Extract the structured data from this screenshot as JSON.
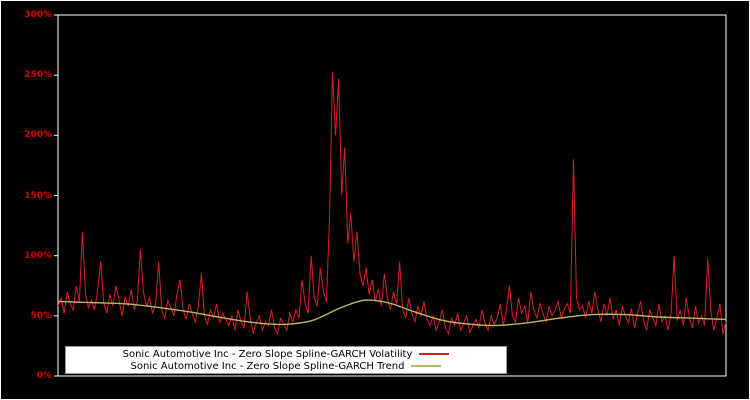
{
  "figure": {
    "background": "#000000",
    "frame_color": "#ffffff"
  },
  "axis": {
    "tick_labels": [
      "0%",
      "50%",
      "100%",
      "150%",
      "200%",
      "250%",
      "300%"
    ],
    "tick_values": [
      0,
      50,
      100,
      150,
      200,
      250,
      300
    ],
    "label_color": "#d40000"
  },
  "legend": {
    "items": [
      {
        "label": "Sonic Automotive Inc - Zero Slope Spline-GARCH Volatility",
        "color": "#d62020"
      },
      {
        "label": "Sonic Automotive Inc - Zero Slope Spline-GARCH Trend",
        "color": "#bdb76b"
      }
    ]
  },
  "chart_data": {
    "type": "line",
    "title": "",
    "xlabel": "",
    "ylabel": "",
    "ylim": [
      0,
      300
    ],
    "y_tick_interval": 50,
    "grid": false,
    "legend_position": "bottom-center",
    "series": [
      {
        "name": "Sonic Automotive Inc - Zero Slope Spline-GARCH Volatility",
        "color": "#d62020",
        "style": "jagged",
        "unit": "percent",
        "values": [
          58,
          65,
          52,
          70,
          60,
          55,
          75,
          62,
          120,
          68,
          57,
          63,
          55,
          72,
          95,
          60,
          52,
          68,
          58,
          75,
          63,
          50,
          66,
          58,
          72,
          55,
          62,
          105,
          70,
          58,
          65,
          52,
          60,
          95,
          55,
          48,
          63,
          57,
          50,
          68,
          80,
          55,
          47,
          60,
          52,
          45,
          58,
          85,
          50,
          43,
          55,
          48,
          60,
          44,
          52,
          47,
          42,
          50,
          38,
          55,
          45,
          40,
          70,
          48,
          36,
          44,
          50,
          38,
          45,
          42,
          55,
          40,
          35,
          48,
          43,
          38,
          52,
          45,
          55,
          48,
          80,
          60,
          52,
          100,
          65,
          58,
          90,
          70,
          62,
          130,
          253,
          200,
          247,
          150,
          190,
          110,
          135,
          95,
          120,
          85,
          75,
          90,
          68,
          80,
          62,
          72,
          58,
          85,
          65,
          55,
          70,
          60,
          95,
          55,
          48,
          65,
          52,
          45,
          58,
          50,
          62,
          47,
          42,
          50,
          38,
          45,
          55,
          40,
          35,
          48,
          42,
          52,
          38,
          44,
          50,
          36,
          42,
          47,
          40,
          55,
          44,
          38,
          50,
          43,
          48,
          60,
          42,
          55,
          75,
          50,
          45,
          65,
          52,
          58,
          44,
          70,
          55,
          48,
          60,
          52,
          45,
          58,
          50,
          55,
          62,
          48,
          56,
          60,
          52,
          180,
          65,
          55,
          58,
          48,
          62,
          52,
          70,
          55,
          45,
          60,
          50,
          65,
          47,
          55,
          42,
          58,
          50,
          44,
          56,
          40,
          52,
          62,
          46,
          38,
          55,
          48,
          42,
          60,
          45,
          50,
          38,
          52,
          100,
          46,
          55,
          42,
          65,
          48,
          40,
          58,
          44,
          50,
          42,
          98,
          55,
          38,
          48,
          60,
          35,
          45
        ]
      },
      {
        "name": "Sonic Automotive Inc - Zero Slope Spline-GARCH Trend",
        "color": "#bdb76b",
        "style": "smooth",
        "unit": "percent",
        "anchors": [
          [
            0,
            62
          ],
          [
            0.05,
            61
          ],
          [
            0.1,
            60
          ],
          [
            0.15,
            57
          ],
          [
            0.2,
            53
          ],
          [
            0.25,
            48
          ],
          [
            0.3,
            44
          ],
          [
            0.34,
            43
          ],
          [
            0.38,
            46
          ],
          [
            0.42,
            56
          ],
          [
            0.45,
            62
          ],
          [
            0.47,
            63
          ],
          [
            0.5,
            60
          ],
          [
            0.53,
            54
          ],
          [
            0.57,
            47
          ],
          [
            0.6,
            44
          ],
          [
            0.65,
            42
          ],
          [
            0.7,
            44
          ],
          [
            0.75,
            48
          ],
          [
            0.8,
            51
          ],
          [
            0.85,
            51
          ],
          [
            0.9,
            49
          ],
          [
            0.95,
            48
          ],
          [
            1.0,
            47
          ]
        ]
      }
    ]
  }
}
